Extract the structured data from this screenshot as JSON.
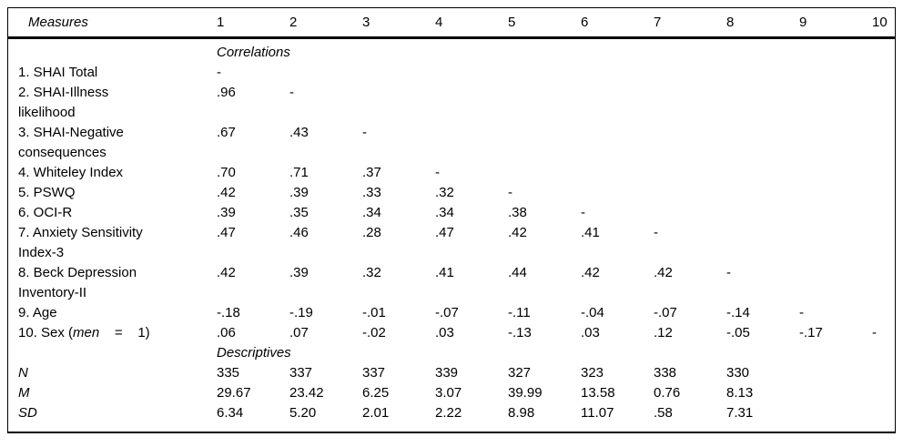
{
  "table": {
    "type": "table",
    "header": {
      "measures_label": "Measures",
      "columns": [
        "1",
        "2",
        "3",
        "4",
        "5",
        "6",
        "7",
        "8",
        "9",
        "10"
      ]
    },
    "sections": [
      {
        "title": "Correlations",
        "rows": [
          {
            "label_lines": [
              [
                {
                  "t": "1. SHAI Total",
                  "i": false
                }
              ]
            ],
            "values": [
              "-"
            ]
          },
          {
            "label_lines": [
              [
                {
                  "t": "2. SHAI-Illness",
                  "i": false
                }
              ],
              [
                {
                  "t": "likelihood",
                  "i": false
                }
              ]
            ],
            "values": [
              ".96",
              "-"
            ]
          },
          {
            "label_lines": [
              [
                {
                  "t": "3. SHAI-Negative",
                  "i": false
                }
              ],
              [
                {
                  "t": "consequences",
                  "i": false
                }
              ]
            ],
            "values": [
              ".67",
              ".43",
              "-"
            ]
          },
          {
            "label_lines": [
              [
                {
                  "t": "4. Whiteley Index",
                  "i": false
                }
              ]
            ],
            "values": [
              ".70",
              ".71",
              ".37",
              "-"
            ]
          },
          {
            "label_lines": [
              [
                {
                  "t": "5. PSWQ",
                  "i": false
                }
              ]
            ],
            "values": [
              ".42",
              ".39",
              ".33",
              ".32",
              "-"
            ]
          },
          {
            "label_lines": [
              [
                {
                  "t": "6. OCI-R",
                  "i": false
                }
              ]
            ],
            "values": [
              ".39",
              ".35",
              ".34",
              ".34",
              ".38",
              "-"
            ]
          },
          {
            "label_lines": [
              [
                {
                  "t": "7. Anxiety Sensitivity",
                  "i": false
                }
              ],
              [
                {
                  "t": "Index-3",
                  "i": false
                }
              ]
            ],
            "values": [
              ".47",
              ".46",
              ".28",
              ".47",
              ".42",
              ".41",
              "-"
            ]
          },
          {
            "label_lines": [
              [
                {
                  "t": "8. Beck Depression",
                  "i": false
                }
              ],
              [
                {
                  "t": "Inventory-II",
                  "i": false
                }
              ]
            ],
            "values": [
              ".42",
              ".39",
              ".32",
              ".41",
              ".44",
              ".42",
              ".42",
              "-"
            ]
          },
          {
            "label_lines": [
              [
                {
                  "t": "9. Age",
                  "i": false
                }
              ]
            ],
            "values": [
              "-.18",
              "-.19",
              "-.01",
              "-.07",
              "-.11",
              "-.04",
              "-.07",
              "-.14",
              "-"
            ]
          },
          {
            "label_lines": [
              [
                {
                  "t": "10. Sex (",
                  "i": false
                },
                {
                  "t": "men",
                  "i": true
                },
                {
                  "t": "    =    1)",
                  "i": false
                }
              ]
            ],
            "values": [
              ".06",
              ".07",
              "-.02",
              ".03",
              "-.13",
              ".03",
              ".12",
              "-.05",
              "-.17",
              "-"
            ]
          }
        ]
      },
      {
        "title": "Descriptives",
        "rows": [
          {
            "label_lines": [
              [
                {
                  "t": "N",
                  "i": true
                }
              ]
            ],
            "values": [
              "335",
              "337",
              "337",
              "339",
              "327",
              "323",
              "338",
              "330"
            ]
          },
          {
            "label_lines": [
              [
                {
                  "t": "M",
                  "i": true
                }
              ]
            ],
            "values": [
              "29.67",
              "23.42",
              "6.25",
              "3.07",
              "39.99",
              "13.58",
              "0.76",
              "8.13"
            ]
          },
          {
            "label_lines": [
              [
                {
                  "t": "SD",
                  "i": true
                }
              ]
            ],
            "values": [
              "6.34",
              "5.20",
              "2.01",
              "2.22",
              "8.98",
              "11.07",
              ".58",
              "7.31"
            ]
          }
        ]
      }
    ]
  }
}
